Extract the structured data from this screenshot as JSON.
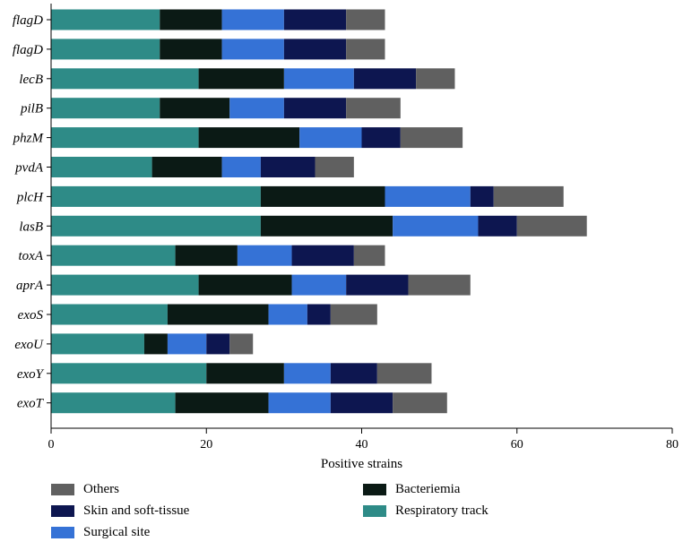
{
  "chart_data": {
    "type": "bar",
    "orientation": "horizontal",
    "stacked": true,
    "title": "",
    "xlabel": "Positive strains",
    "ylabel": "",
    "xlim": [
      0,
      80
    ],
    "xticks": [
      0,
      20,
      40,
      60,
      80
    ],
    "categories": [
      "flagD",
      "flagD",
      "lecB",
      "pilB",
      "phzM",
      "pvdA",
      "plcH",
      "lasB",
      "toxA",
      "aprA",
      "exoS",
      "exoU",
      "exoY",
      "exoT"
    ],
    "series": [
      {
        "name": "Respiratory track",
        "color": "#2e8b87",
        "values": [
          14,
          14,
          19,
          14,
          19,
          13,
          27,
          27,
          16,
          19,
          15,
          12,
          20,
          16
        ]
      },
      {
        "name": "Bacteriemia",
        "color": "#0b1a15",
        "values": [
          8,
          8,
          11,
          9,
          13,
          9,
          16,
          17,
          8,
          12,
          13,
          3,
          10,
          12
        ]
      },
      {
        "name": "Surgical site",
        "color": "#3572d6",
        "values": [
          8,
          8,
          9,
          7,
          8,
          5,
          11,
          11,
          7,
          7,
          5,
          5,
          6,
          8
        ]
      },
      {
        "name": "Skin and soft-tissue",
        "color": "#0d1650",
        "values": [
          8,
          8,
          8,
          8,
          5,
          7,
          3,
          5,
          8,
          8,
          3,
          3,
          6,
          8
        ]
      },
      {
        "name": "Others",
        "color": "#606060",
        "values": [
          5,
          5,
          5,
          7,
          8,
          5,
          9,
          9,
          4,
          8,
          6,
          3,
          7,
          7
        ]
      }
    ],
    "legend": [
      {
        "name": "Others",
        "color": "#606060"
      },
      {
        "name": "Bacteriemia",
        "color": "#0b1a15"
      },
      {
        "name": "Skin and soft-tissue",
        "color": "#0d1650"
      },
      {
        "name": "Respiratory track",
        "color": "#2e8b87"
      },
      {
        "name": "Surgical site",
        "color": "#3572d6"
      }
    ],
    "legend_position": "bottom"
  }
}
